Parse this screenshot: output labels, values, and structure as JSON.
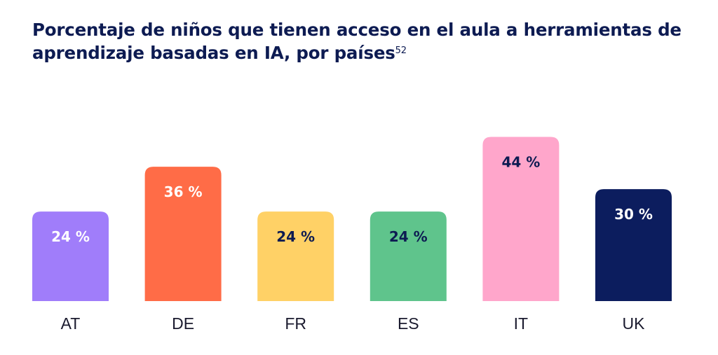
{
  "title": "Porcentaje de niños que tienen acceso en el aula a herramientas de aprendizaje basadas en IA, por países",
  "title_footnote": "52",
  "chart_data": {
    "type": "bar",
    "categories": [
      "AT",
      "DE",
      "FR",
      "ES",
      "IT",
      "UK"
    ],
    "values": [
      24,
      36,
      24,
      24,
      44,
      30
    ],
    "data_labels": [
      "24 %",
      "36 %",
      "24 %",
      "24 %",
      "44 %",
      "30 %"
    ],
    "colors": [
      "#a07dfa",
      "#ff6c47",
      "#ffd166",
      "#5fc48c",
      "#ffa6cb",
      "#0c1d5e"
    ],
    "label_colors": [
      "#ffffff",
      "#ffffff",
      "#0d1b52",
      "#0d1b52",
      "#0d1b52",
      "#ffffff"
    ],
    "ylim": [
      0,
      50
    ],
    "grid": false,
    "xlabel": "",
    "ylabel": ""
  }
}
